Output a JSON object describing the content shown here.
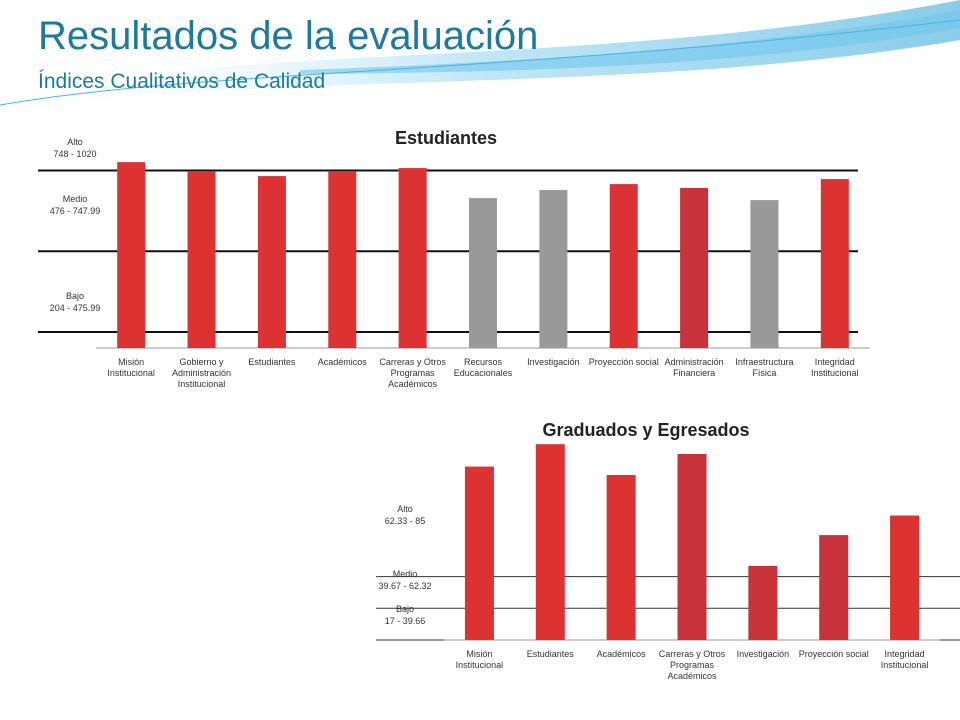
{
  "header": {
    "title": "Resultados de la evaluación",
    "subtitle": "Índices Cualitativos de Calidad"
  },
  "chart_data": [
    {
      "type": "bar",
      "title": "Estudiantes",
      "categories": [
        "Misión Institucional",
        "Gobierno y Administración Institucional",
        "Estudiantes",
        "Académicos",
        "Carreras y Otros Programas Académicos",
        "Recursos Educacionales",
        "Investigación",
        "Proyección social",
        "Administración Financiera",
        "Infraestructura Física",
        "Integridad Institucional"
      ],
      "values": [
        776,
        746,
        729,
        746,
        756,
        655,
        682,
        702,
        689,
        648,
        719
      ],
      "colors": [
        "#dc3232",
        "#dc3232",
        "#dc3232",
        "#dc3232",
        "#dc3232",
        "#999999",
        "#999999",
        "#dc3232",
        "#c8323a",
        "#999999",
        "#dc3232"
      ],
      "ylim": [
        150,
        800
      ],
      "bands": [
        {
          "name": "Alto",
          "range": "748 - 1020",
          "value": 748
        },
        {
          "name": "Medio",
          "range": "476 - 747.99",
          "value": 476
        },
        {
          "name": "Bajo",
          "range": "204 - 475.99",
          "value": 204
        }
      ]
    },
    {
      "type": "bar",
      "title": "Graduados y Egresados",
      "categories": [
        "Misión Institucional",
        "Estudiantes",
        "Académicos",
        "Carreras y Otros Programas Académicos",
        "Investigación",
        "Proyección social",
        "Integridad Institucional"
      ],
      "values": [
        141,
        157,
        135,
        150,
        70,
        92,
        106
      ],
      "colors": [
        "#dc3232",
        "#dc3232",
        "#dc3232",
        "#c8323a",
        "#c8323a",
        "#c8323a",
        "#dc3232"
      ],
      "ylim": [
        17,
        160
      ],
      "bands": [
        {
          "name": "Alto",
          "range": "62.33 - 85",
          "value": 62.33
        },
        {
          "name": "Medio",
          "range": "39.67 - 62.32",
          "value": 39.67
        },
        {
          "name": "Bajo",
          "range": "17 - 39.66",
          "value": 17
        }
      ]
    }
  ]
}
